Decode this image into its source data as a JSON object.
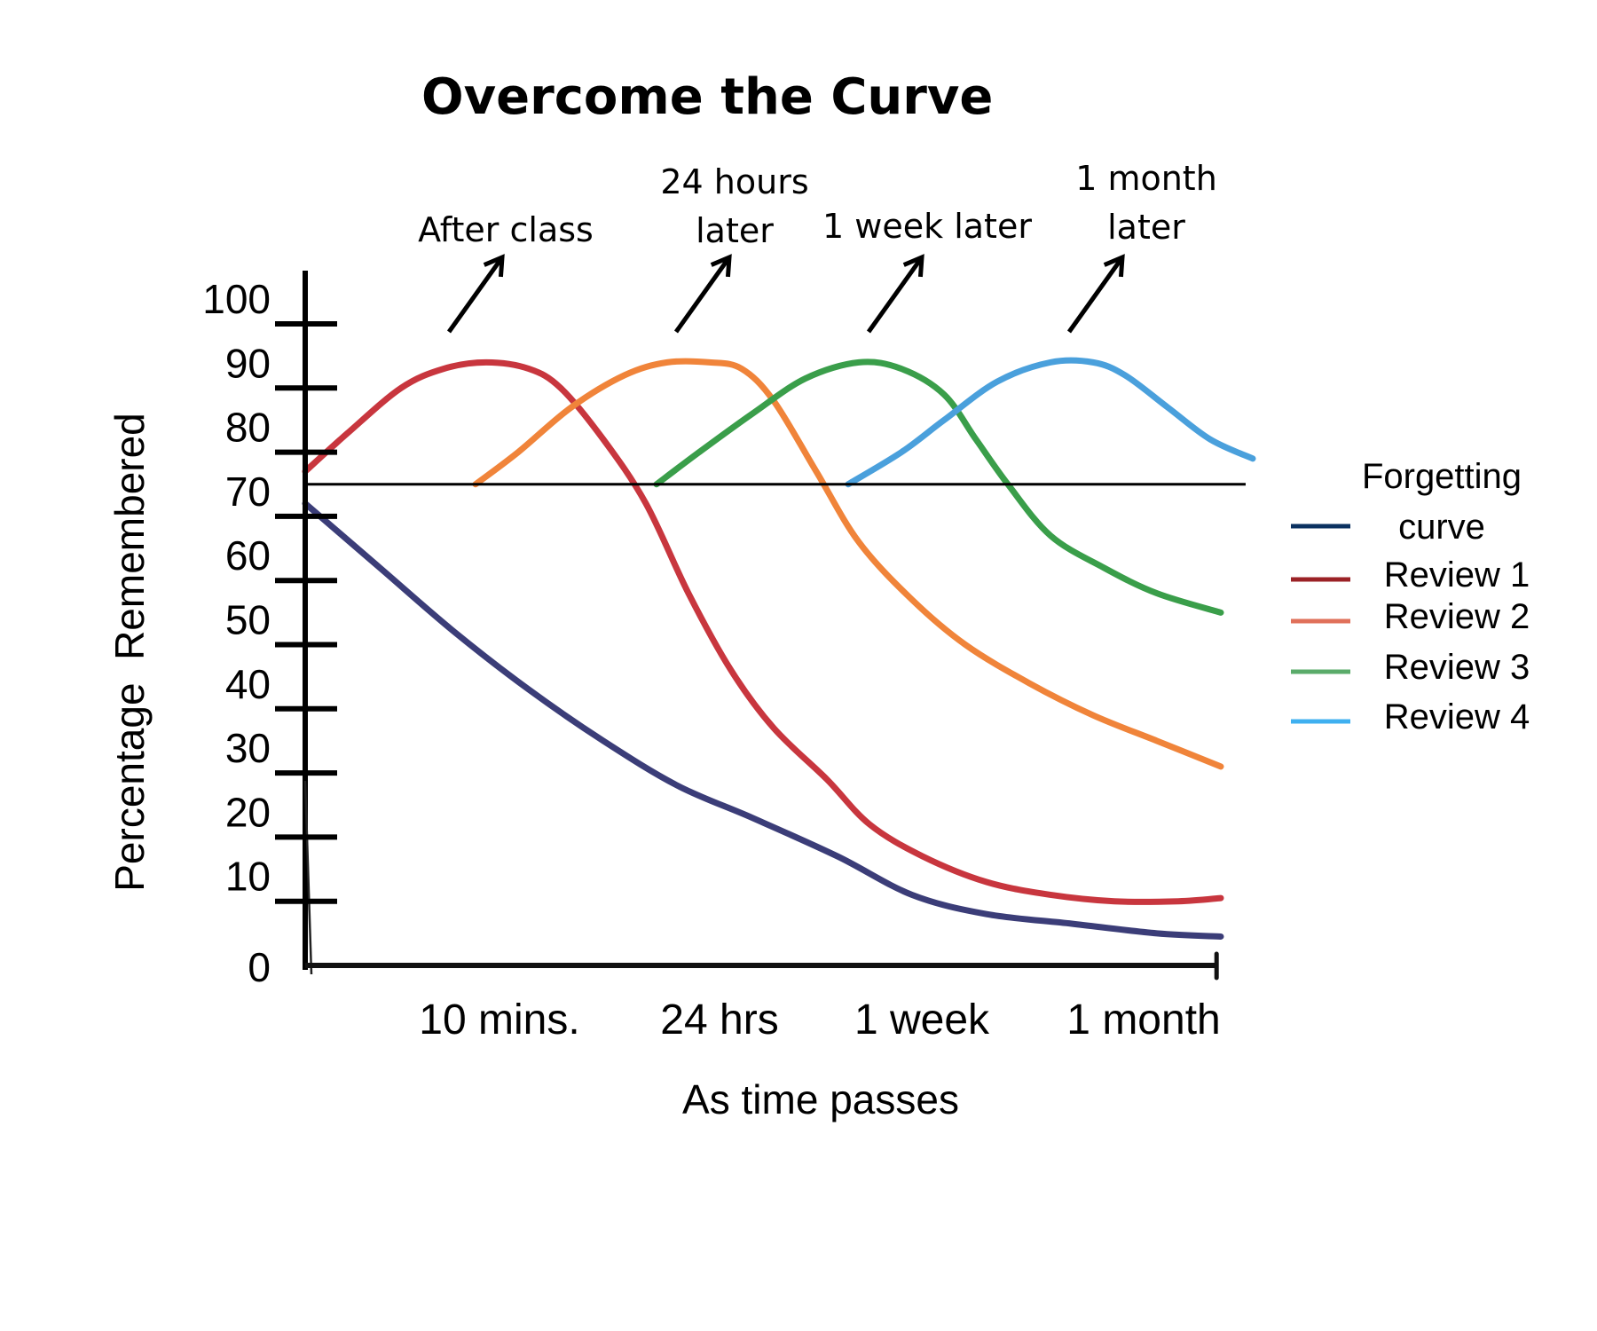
{
  "chart_data": {
    "type": "line",
    "title": "Overcome the Curve",
    "xlabel": "As time passes",
    "ylabel": "Percentage  Remembered",
    "ylim": [
      0,
      100
    ],
    "xlim": [
      0,
      4.3
    ],
    "yticks": [
      100,
      90,
      80,
      70,
      60,
      50,
      40,
      30,
      20,
      10,
      0
    ],
    "xticks": [
      {
        "x": 1,
        "label": "10 mins."
      },
      {
        "x": 2,
        "label": "24 hrs"
      },
      {
        "x": 3,
        "label": "1 week"
      },
      {
        "x": 4,
        "label": "1 month"
      }
    ],
    "reference_line": {
      "y": 75
    },
    "grid": false,
    "legend_position": "right",
    "series": [
      {
        "name": "Forgetting curve",
        "legend_label_lines": [
          "Forgetting",
          "curve"
        ],
        "color": "#3b3d78",
        "legend_color": "#0b3160",
        "points": [
          [
            0,
            72
          ],
          [
            0.35,
            62
          ],
          [
            0.7,
            52
          ],
          [
            1.05,
            43
          ],
          [
            1.4,
            35
          ],
          [
            1.75,
            28
          ],
          [
            2.1,
            23
          ],
          [
            2.5,
            17
          ],
          [
            2.85,
            11
          ],
          [
            3.2,
            8
          ],
          [
            3.6,
            6.5
          ],
          [
            4.0,
            5
          ],
          [
            4.3,
            4.5
          ]
        ]
      },
      {
        "name": "Review 1",
        "color": "#c8363e",
        "legend_color": "#9b2226",
        "points": [
          [
            0,
            77
          ],
          [
            0.2,
            83
          ],
          [
            0.45,
            90
          ],
          [
            0.65,
            93
          ],
          [
            0.85,
            94
          ],
          [
            1.05,
            93
          ],
          [
            1.2,
            90
          ],
          [
            1.4,
            82
          ],
          [
            1.6,
            72
          ],
          [
            1.8,
            58
          ],
          [
            2.0,
            46
          ],
          [
            2.2,
            37
          ],
          [
            2.45,
            29
          ],
          [
            2.65,
            22
          ],
          [
            2.9,
            17
          ],
          [
            3.2,
            13
          ],
          [
            3.5,
            11
          ],
          [
            3.8,
            10
          ],
          [
            4.1,
            10
          ],
          [
            4.3,
            10.5
          ]
        ]
      },
      {
        "name": "Review 2",
        "color": "#f0843a",
        "legend_color": "#e0705a",
        "points": [
          [
            0.8,
            75
          ],
          [
            1.0,
            80
          ],
          [
            1.25,
            87
          ],
          [
            1.5,
            92
          ],
          [
            1.7,
            94
          ],
          [
            1.9,
            94
          ],
          [
            2.05,
            93
          ],
          [
            2.2,
            88
          ],
          [
            2.4,
            77
          ],
          [
            2.6,
            66
          ],
          [
            2.85,
            57
          ],
          [
            3.1,
            50
          ],
          [
            3.4,
            44
          ],
          [
            3.7,
            39
          ],
          [
            4.0,
            35
          ],
          [
            4.3,
            31
          ]
        ]
      },
      {
        "name": "Review 3",
        "color": "#3a9e4a",
        "legend_color": "#5aab6a",
        "points": [
          [
            1.65,
            75
          ],
          [
            1.85,
            80
          ],
          [
            2.1,
            86
          ],
          [
            2.35,
            91.5
          ],
          [
            2.6,
            94
          ],
          [
            2.8,
            93
          ],
          [
            3.0,
            89
          ],
          [
            3.15,
            82
          ],
          [
            3.3,
            75
          ],
          [
            3.5,
            67
          ],
          [
            3.75,
            62
          ],
          [
            4.0,
            58
          ],
          [
            4.3,
            55
          ]
        ]
      },
      {
        "name": "Review 4",
        "color": "#4aa0dc",
        "legend_color": "#3fb0f0",
        "points": [
          [
            2.55,
            75
          ],
          [
            2.8,
            80
          ],
          [
            3.0,
            85
          ],
          [
            3.25,
            91
          ],
          [
            3.5,
            94
          ],
          [
            3.7,
            94
          ],
          [
            3.85,
            92
          ],
          [
            4.05,
            87
          ],
          [
            4.25,
            82
          ],
          [
            4.45,
            79
          ]
        ]
      }
    ],
    "annotations": [
      {
        "lines": [
          "After class"
        ],
        "arrow_from": [
          0.85,
          97
        ],
        "arrow_to": [
          1.1,
          106
        ]
      },
      {
        "lines": [
          "24 hours",
          "later"
        ],
        "arrow_from": [
          1.85,
          97
        ],
        "arrow_to": [
          2.1,
          106
        ]
      },
      {
        "lines": [
          "1 week later"
        ],
        "arrow_from": [
          2.75,
          97
        ],
        "arrow_to": [
          3.0,
          106
        ]
      },
      {
        "lines": [
          "1 month",
          "later"
        ],
        "arrow_from": [
          3.65,
          97
        ],
        "arrow_to": [
          3.9,
          106
        ]
      }
    ]
  }
}
